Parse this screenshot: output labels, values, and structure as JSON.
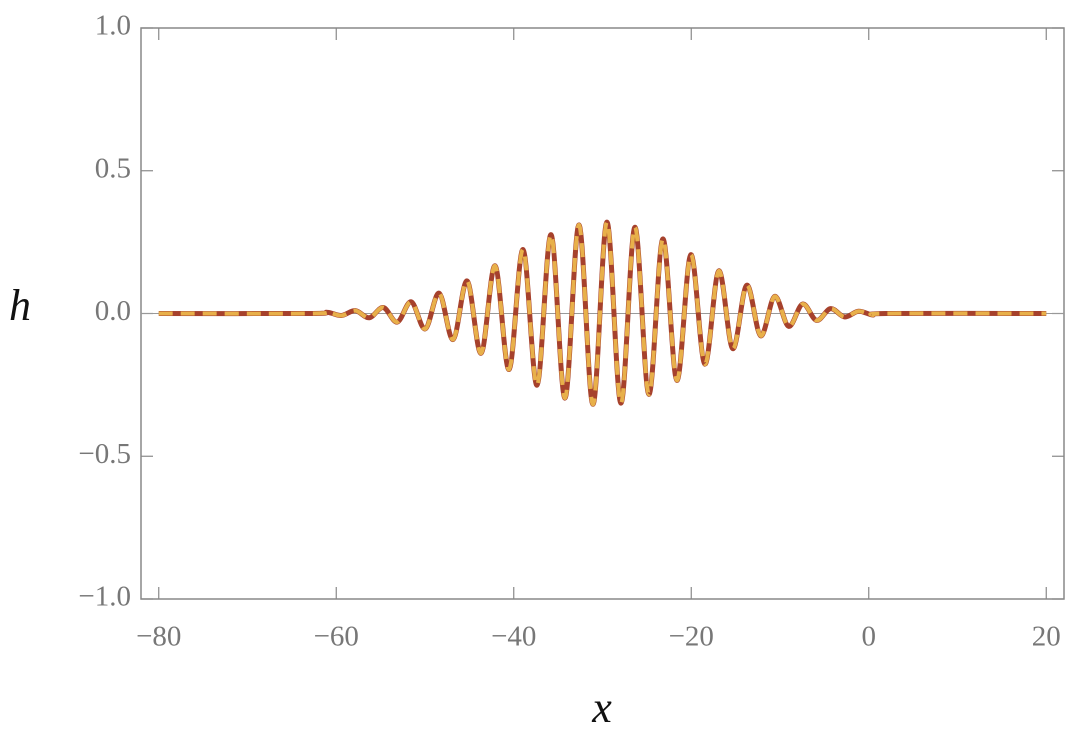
{
  "chart_data": {
    "type": "line",
    "xlabel": "x",
    "ylabel": "h",
    "xlim": [
      -82,
      22
    ],
    "ylim": [
      -1,
      1
    ],
    "xticks": [
      {
        "value": -80,
        "label": "−80"
      },
      {
        "value": -60,
        "label": "−60"
      },
      {
        "value": -40,
        "label": "−40"
      },
      {
        "value": -20,
        "label": "−20"
      },
      0,
      20
    ],
    "yticks": [
      {
        "value": -1,
        "label": "−1.0"
      },
      {
        "value": -0.5,
        "label": "−0.5"
      },
      {
        "value": 0,
        "label": "0.0"
      },
      0.5,
      {
        "value": 1,
        "label": "1.0"
      }
    ],
    "x": [
      -80,
      -63,
      -61.0,
      -59.425,
      -57.85,
      -56.275,
      -54.7,
      -53.125,
      -51.55,
      -49.975,
      -48.4,
      -46.825,
      -45.25,
      -43.675,
      -42.1,
      -40.525,
      -38.95,
      -37.375,
      -35.8,
      -34.225,
      -32.65,
      -31.075,
      -29.5,
      -27.925,
      -26.35,
      -24.775,
      -23.2,
      -21.625,
      -20.05,
      -18.475,
      -16.9,
      -15.325,
      -13.75,
      -12.175,
      -10.6,
      -9.025,
      -7.45,
      -5.875,
      -4.3,
      -2.725,
      -1.15,
      0.425,
      2,
      20
    ],
    "series": [
      {
        "color": "#a6412c",
        "dashed": false,
        "values": [
          0,
          0,
          0.004,
          -0.007,
          0.01,
          -0.015,
          0.021,
          -0.03,
          0.041,
          -0.054,
          0.071,
          -0.091,
          0.114,
          -0.139,
          0.167,
          -0.196,
          0.224,
          -0.251,
          0.276,
          -0.296,
          0.31,
          -0.318,
          0.32,
          -0.314,
          0.302,
          -0.283,
          0.261,
          -0.234,
          0.206,
          -0.177,
          0.149,
          -0.123,
          0.099,
          -0.078,
          0.06,
          -0.045,
          0.033,
          -0.024,
          0.017,
          -0.012,
          0.008,
          -0.005,
          0,
          0
        ]
      },
      {
        "color": "#e8b04a",
        "dashed": true,
        "values": [
          0,
          0,
          0.004,
          -0.007,
          0.01,
          -0.015,
          0.021,
          -0.03,
          0.041,
          -0.054,
          0.071,
          -0.091,
          0.114,
          -0.139,
          0.167,
          -0.196,
          0.224,
          -0.251,
          0.276,
          -0.296,
          0.31,
          -0.318,
          0.32,
          -0.314,
          0.302,
          -0.283,
          0.261,
          -0.234,
          0.206,
          -0.177,
          0.149,
          -0.123,
          0.099,
          -0.078,
          0.06,
          -0.045,
          0.033,
          -0.024,
          0.017,
          -0.012,
          0.008,
          -0.005,
          0,
          0
        ]
      }
    ]
  }
}
